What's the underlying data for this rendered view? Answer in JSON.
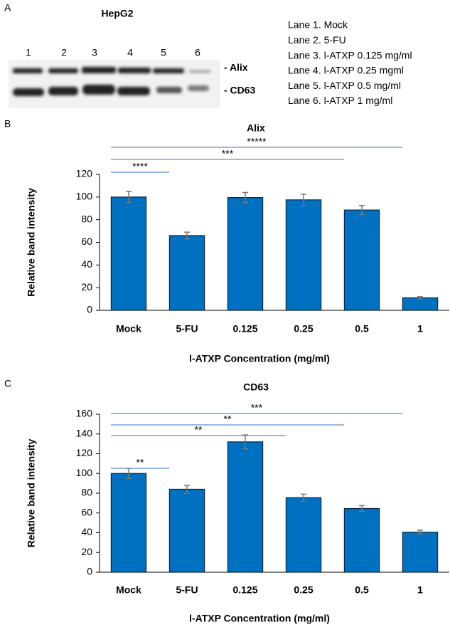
{
  "blot": {
    "panel_label": "A",
    "title": "HepG2",
    "lanes": [
      "1",
      "2",
      "3",
      "4",
      "5",
      "6"
    ],
    "bands": [
      "- Alix",
      "- CD63"
    ],
    "legend": [
      "Lane 1. Mock",
      "Lane 2. 5-FU",
      "Lane 3. l-ATXP 0.125 mg/ml",
      "Lane 4. l-ATXP 0.25 mgml",
      "Lane 5. l-ATXP 0.5 mg/ml",
      "Lane 6. l-ATXP 1 mg/ml"
    ]
  },
  "chart_data": [
    {
      "type": "bar",
      "panel_label": "B",
      "title": "Alix",
      "y_label": "Relative band intensity",
      "x_label": "l-ATXP Concentration (mg/ml)",
      "categories": [
        "Mock",
        "5-FU",
        "0.125",
        "0.25",
        "0.5",
        "1"
      ],
      "values": [
        100,
        66,
        99.5,
        97.5,
        88.5,
        11
      ],
      "errors": [
        5,
        3,
        4.5,
        5,
        4,
        1
      ],
      "color": "#0070c0",
      "ylim": [
        0,
        120
      ],
      "yticks": [
        0,
        20,
        40,
        60,
        80,
        100,
        120
      ],
      "annotations": [
        {
          "from": "Mock",
          "to": "5-FU",
          "label": "****"
        },
        {
          "from": "Mock",
          "to": "0.5",
          "label": "***"
        },
        {
          "from": "Mock",
          "to": "1",
          "label": "*****"
        }
      ]
    },
    {
      "type": "bar",
      "panel_label": "C",
      "title": "CD63",
      "y_label": "Relative band intensity",
      "x_label": "l-ATXP Concentration (mg/ml)",
      "categories": [
        "Mock",
        "5-FU",
        "0.125",
        "0.25",
        "0.5",
        "1"
      ],
      "values": [
        100,
        84,
        132,
        75.5,
        64.5,
        40.5
      ],
      "errors": [
        5,
        4,
        7,
        3.5,
        3,
        2
      ],
      "color": "#0070c0",
      "ylim": [
        0,
        160
      ],
      "yticks": [
        0,
        20,
        40,
        60,
        80,
        100,
        120,
        140,
        160
      ],
      "annotations": [
        {
          "from": "Mock",
          "to": "5-FU",
          "label": "**"
        },
        {
          "from": "Mock",
          "to": "0.25",
          "label": "**"
        },
        {
          "from": "Mock",
          "to": "0.5",
          "label": "**"
        },
        {
          "from": "Mock",
          "to": "1",
          "label": "***"
        }
      ]
    }
  ]
}
